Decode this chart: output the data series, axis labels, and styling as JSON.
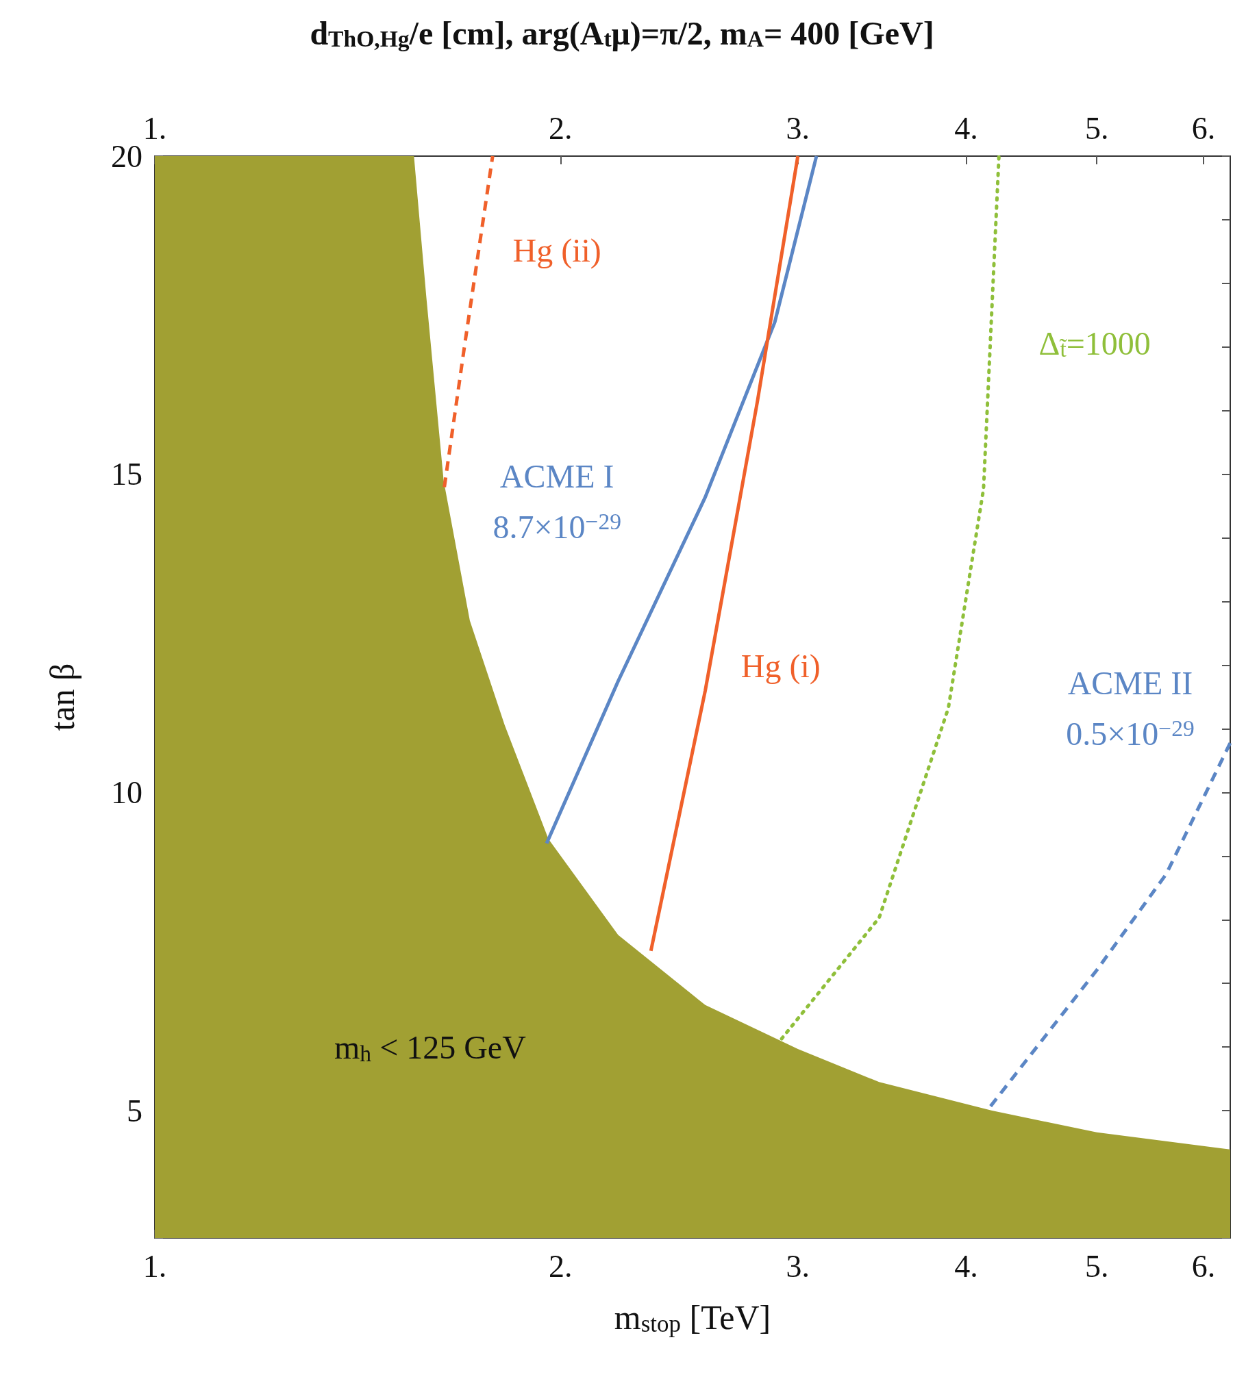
{
  "chart_data": {
    "type": "line",
    "title": "d$_{ThO,Hg}$/e [cm], arg(A$_{t}$μ)=π/2, m$_{A}$= 400 [GeV]",
    "xlabel": "m$_{stop}$ [TeV]",
    "ylabel": "tan β",
    "log": "x",
    "xlim": [
      1,
      6.28
    ],
    "xticks": [
      {
        "value": 1,
        "label": "1."
      },
      {
        "value": 2,
        "label": "2."
      },
      {
        "value": 3,
        "label": "3."
      },
      {
        "value": 4,
        "label": "4."
      },
      {
        "value": 5,
        "label": "5."
      },
      {
        "value": 6,
        "label": "6."
      }
    ],
    "ylim": [
      3,
      20
    ],
    "yticks": [
      {
        "value": 3,
        "label": null
      },
      {
        "value": 4,
        "label": null
      },
      5,
      {
        "value": 6,
        "label": null
      },
      {
        "value": 7,
        "label": null
      },
      {
        "value": 8,
        "label": null
      },
      {
        "value": 9,
        "label": null
      },
      10,
      {
        "value": 11,
        "label": null
      },
      {
        "value": 12,
        "label": null
      },
      {
        "value": 13,
        "label": null
      },
      {
        "value": 14,
        "label": null
      },
      15,
      {
        "value": 16,
        "label": null
      },
      {
        "value": 17,
        "label": null
      },
      {
        "value": 18,
        "label": null
      },
      {
        "value": 19,
        "label": null
      },
      20
    ],
    "grid": false,
    "marker": "none",
    "series": [
      {
        "type": "area",
        "color": "#a1a033",
        "x": [
          1,
          1.557,
          1.59,
          1.638,
          1.713,
          1.818,
          1.959,
          2.207,
          2.561,
          3.0,
          3.447,
          4.18,
          5.0,
          6.28
        ],
        "values": [
          20,
          20,
          17.8,
          14.9,
          12.7,
          11.06,
          9.27,
          7.76,
          6.66,
          5.97,
          5.45,
          5.0,
          4.66,
          4.39
        ]
      },
      {
        "color": "#f0602a",
        "line_style": "dashed",
        "x": [
          1.64,
          1.7,
          1.781
        ],
        "values": [
          14.8,
          17.11,
          20
        ]
      },
      {
        "color": "#5b86c5",
        "line_style": "solid",
        "x": [
          1.953,
          2.207,
          2.561,
          2.884,
          3.097
        ],
        "values": [
          9.2,
          11.75,
          14.64,
          17.39,
          20
        ]
      },
      {
        "color": "#f0602a",
        "line_style": "solid",
        "x": [
          2.334,
          2.561,
          2.8,
          3.0
        ],
        "values": [
          7.51,
          11.6,
          16.15,
          20
        ]
      },
      {
        "color": "#8fbf3a",
        "line_style": "dotted",
        "x": [
          2.918,
          3.447,
          3.88,
          4.12,
          4.23
        ],
        "values": [
          6.13,
          8.03,
          11.33,
          14.77,
          20
        ]
      },
      {
        "color": "#5b86c5",
        "line_style": "dashed",
        "x": [
          4.17,
          5.0,
          5.63,
          6.28
        ],
        "values": [
          5.07,
          7.21,
          8.72,
          10.78
        ]
      }
    ],
    "annotations": [
      "Hg (ii)",
      "ACME I",
      "8.7×10$^{−29}$",
      "Δ$_{t̃}$=1000",
      "Hg (i)",
      "ACME II",
      "0.5×10$^{−29}$",
      "m$_{h}$ < 125 GeV"
    ]
  }
}
